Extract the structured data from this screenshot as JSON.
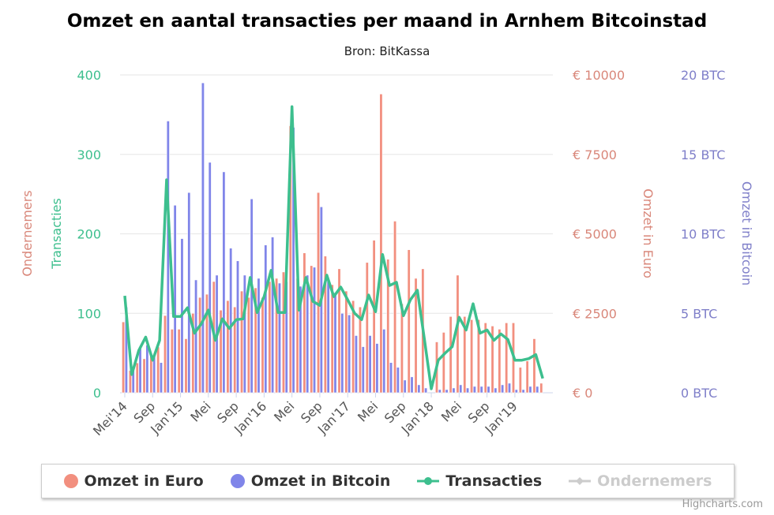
{
  "chart_data": {
    "type": "bar",
    "title": "Omzet en aantal transacties per maand in Arnhem Bitcoinstad",
    "subtitle": "Bron: BitKassa",
    "x_tick_labels": [
      "Mei'14",
      "Sep",
      "Jan'15",
      "Mei",
      "Sep",
      "Jan'16",
      "Mei",
      "Sep",
      "Jan'17",
      "Mei",
      "Sep",
      "Jan'18",
      "Mei",
      "Sep",
      "Jan'19"
    ],
    "x_range": [
      "2014-05",
      "2019-05"
    ],
    "axes": {
      "transacties": {
        "title": "Transacties",
        "ticks": [
          "0",
          "100",
          "200",
          "300",
          "400"
        ],
        "range": [
          0,
          400
        ],
        "color": "#3dbf8e"
      },
      "ondernemers": {
        "title": "Ondernemers",
        "color": "#d9877a"
      },
      "euro": {
        "title": "Omzet in Euro",
        "ticks": [
          "€ 0",
          "€ 2500",
          "€ 5000",
          "€ 7500",
          "€ 10000"
        ],
        "range": [
          0,
          10000
        ],
        "color": "#d9877a"
      },
      "bitcoin": {
        "title": "Omzet in Bitcoin",
        "ticks": [
          "0 BTC",
          "5 BTC",
          "10 BTC",
          "15 BTC",
          "20 BTC"
        ],
        "range": [
          0,
          20
        ],
        "color": "#7f7fc9"
      }
    },
    "grid": true,
    "legend_placement": "bottom",
    "series": [
      {
        "name": "Omzet in Euro",
        "type": "column",
        "axis": "euro",
        "color": "#f28f7f",
        "values": [
          2230,
          700,
          940,
          1070,
          1190,
          1440,
          2430,
          2000,
          2000,
          1700,
          2500,
          3000,
          3100,
          3500,
          2600,
          2900,
          2700,
          3200,
          3000,
          3300,
          3000,
          3500,
          3600,
          3800,
          8400,
          3600,
          4400,
          4000,
          6300,
          4300,
          3400,
          3900,
          3200,
          2900,
          2700,
          4100,
          4800,
          9400,
          4200,
          5400,
          2800,
          4500,
          3600,
          3900,
          0,
          1600,
          1900,
          2400,
          3700,
          2400,
          2300,
          2300,
          2200,
          2100,
          2000,
          2200,
          2200,
          800,
          1000,
          1700,
          300
        ]
      },
      {
        "name": "Omzet in Bitcoin",
        "type": "column",
        "axis": "bitcoin",
        "color": "#8085e9",
        "values": [
          5.4,
          1.4,
          2.9,
          3.0,
          2.4,
          1.9,
          17.1,
          11.8,
          9.7,
          12.6,
          7.1,
          19.5,
          14.5,
          7.4,
          13.9,
          9.1,
          8.3,
          7.4,
          12.2,
          7.2,
          9.3,
          9.8,
          6.9,
          7.0,
          16.7,
          6.7,
          7.4,
          7.9,
          11.7,
          7.1,
          6.3,
          5.0,
          4.9,
          3.6,
          2.9,
          3.6,
          3.1,
          4.0,
          1.9,
          1.6,
          0.8,
          1.0,
          0.5,
          0.3,
          0,
          0.2,
          0.2,
          0.3,
          0.5,
          0.3,
          0.4,
          0.4,
          0.4,
          0.3,
          0.5,
          0.6,
          0.2,
          0.2,
          0.4,
          0.4,
          0
        ]
      },
      {
        "name": "Transacties",
        "type": "line",
        "axis": "transacties",
        "color": "#3dbf8e",
        "values": [
          122,
          23,
          53,
          70,
          41,
          66,
          268,
          96,
          96,
          107,
          75,
          87,
          104,
          66,
          93,
          81,
          92,
          93,
          145,
          101,
          121,
          154,
          101,
          101,
          360,
          104,
          145,
          115,
          110,
          148,
          121,
          133,
          117,
          100,
          92,
          123,
          102,
          174,
          135,
          139,
          97,
          117,
          129,
          68,
          5,
          41,
          50,
          58,
          95,
          79,
          112,
          75,
          79,
          66,
          74,
          67,
          41,
          41,
          43,
          48,
          18
        ]
      },
      {
        "name": "Ondernemers",
        "type": "line",
        "axis": "ondernemers",
        "color": "#cccccc",
        "hidden": true,
        "values": []
      }
    ]
  },
  "legend": [
    "Omzet in Euro",
    "Omzet in Bitcoin",
    "Transacties",
    "Ondernemers"
  ],
  "credit": "Highcharts.com"
}
